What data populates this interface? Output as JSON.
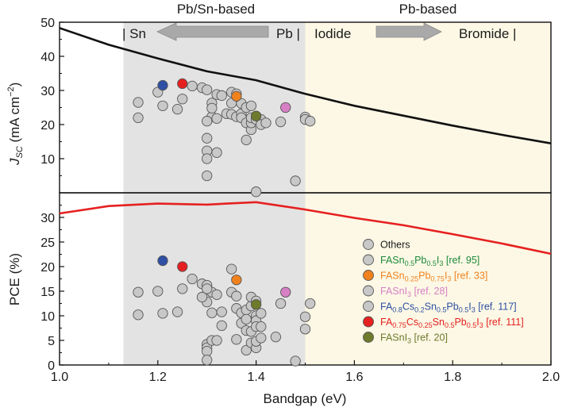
{
  "chart_data": [
    {
      "type": "line+scatter",
      "panel": "top",
      "ylabel": "J_SC (mA cm^-2)",
      "ylabel_main": "J",
      "ylabel_sub": "SC",
      "ylabel_rest": " (mA cm",
      "ylabel_sup": "−2",
      "ylabel_close": ")",
      "ylim": [
        0,
        50
      ],
      "yticks": [
        "10",
        "20",
        "30",
        "40",
        "50"
      ],
      "ytick_values": [
        10,
        20,
        30,
        40,
        50
      ],
      "limit_line": {
        "x": [
          1.0,
          1.1,
          1.2,
          1.3,
          1.4,
          1.5,
          1.6,
          1.7,
          1.8,
          1.9,
          2.0
        ],
        "y": [
          48.3,
          43.4,
          39.4,
          35.6,
          33.0,
          29.0,
          25.5,
          22.6,
          19.7,
          17.0,
          14.5
        ]
      },
      "others": [
        [
          1.16,
          26.5
        ],
        [
          1.16,
          22.0
        ],
        [
          1.2,
          29.5
        ],
        [
          1.21,
          25.5
        ],
        [
          1.24,
          24.5
        ],
        [
          1.25,
          27.5
        ],
        [
          1.27,
          31.3
        ],
        [
          1.29,
          30.8
        ],
        [
          1.3,
          30.2
        ],
        [
          1.31,
          26.3
        ],
        [
          1.31,
          22.3
        ],
        [
          1.31,
          24.8
        ],
        [
          1.32,
          28.8
        ],
        [
          1.32,
          21.8
        ],
        [
          1.33,
          28.5
        ],
        [
          1.34,
          23.2
        ],
        [
          1.35,
          29.5
        ],
        [
          1.35,
          26.3
        ],
        [
          1.35,
          23.0
        ],
        [
          1.36,
          22.3
        ],
        [
          1.36,
          29.0
        ],
        [
          1.37,
          26.2
        ],
        [
          1.37,
          23.2
        ],
        [
          1.37,
          22.0
        ],
        [
          1.38,
          20.5
        ],
        [
          1.38,
          25.0
        ],
        [
          1.38,
          15.5
        ],
        [
          1.39,
          18.5
        ],
        [
          1.39,
          25.5
        ],
        [
          1.39,
          20.5
        ],
        [
          1.39,
          22.0
        ],
        [
          1.4,
          22.5
        ],
        [
          1.4,
          21.5
        ],
        [
          1.41,
          21.5
        ],
        [
          1.41,
          20.0
        ],
        [
          1.42,
          20.5
        ],
        [
          1.45,
          20.8
        ],
        [
          1.5,
          22.2
        ],
        [
          1.5,
          21.5
        ],
        [
          1.51,
          21.0
        ],
        [
          1.3,
          16.0
        ],
        [
          1.3,
          12.3
        ],
        [
          1.3,
          10.0
        ],
        [
          1.32,
          11.8
        ],
        [
          1.3,
          5.0
        ],
        [
          1.48,
          3.5
        ],
        [
          1.4,
          0.3
        ],
        [
          1.3,
          21.0
        ]
      ],
      "highlights": [
        {
          "name": "FAPbI3-blue",
          "x": 1.21,
          "y": 31.5,
          "color": "#2e4fa3"
        },
        {
          "name": "FA0.75-red",
          "x": 1.25,
          "y": 32.0,
          "color": "#e62020"
        },
        {
          "name": "FASn0.25-orange",
          "x": 1.36,
          "y": 28.3,
          "color": "#f0821e"
        },
        {
          "name": "FASnI3-pink",
          "x": 1.46,
          "y": 25.0,
          "color": "#d77fc5"
        },
        {
          "name": "FASnI3-olive",
          "x": 1.4,
          "y": 22.5,
          "color": "#6e7a2c"
        }
      ]
    },
    {
      "type": "line+scatter",
      "panel": "bottom",
      "xlabel": "Bandgap (eV)",
      "ylabel": "PCE (%)",
      "xlim": [
        1.0,
        2.0
      ],
      "ylim": [
        0,
        35
      ],
      "xticks": [
        "1.0",
        "1.2",
        "1.4",
        "1.6",
        "1.8",
        "2.0"
      ],
      "xtick_values": [
        1.0,
        1.2,
        1.4,
        1.6,
        1.8,
        2.0
      ],
      "yticks": [
        "0",
        "5",
        "10",
        "15",
        "20",
        "25",
        "30"
      ],
      "ytick_values": [
        0,
        5,
        10,
        15,
        20,
        25,
        30
      ],
      "limit_line": {
        "x": [
          1.0,
          1.1,
          1.2,
          1.3,
          1.34,
          1.4,
          1.5,
          1.6,
          1.7,
          1.8,
          1.9,
          2.0
        ],
        "y": [
          30.8,
          32.3,
          32.8,
          32.6,
          32.8,
          33.1,
          31.6,
          29.9,
          28.4,
          26.6,
          24.7,
          22.6
        ]
      },
      "others": [
        [
          1.16,
          14.8
        ],
        [
          1.16,
          10.2
        ],
        [
          1.2,
          15.0
        ],
        [
          1.21,
          10.5
        ],
        [
          1.24,
          10.8
        ],
        [
          1.25,
          15.5
        ],
        [
          1.27,
          17.5
        ],
        [
          1.29,
          16.5
        ],
        [
          1.3,
          16.2
        ],
        [
          1.3,
          12.8
        ],
        [
          1.31,
          14.8
        ],
        [
          1.31,
          10.6
        ],
        [
          1.32,
          14.3
        ],
        [
          1.33,
          10.8
        ],
        [
          1.33,
          8.0
        ],
        [
          1.35,
          19.5
        ],
        [
          1.35,
          14.8
        ],
        [
          1.36,
          11.5
        ],
        [
          1.36,
          14.0
        ],
        [
          1.37,
          8.5
        ],
        [
          1.37,
          10.6
        ],
        [
          1.38,
          11.2
        ],
        [
          1.38,
          9.3
        ],
        [
          1.38,
          7.0
        ],
        [
          1.39,
          12.0
        ],
        [
          1.39,
          6.8
        ],
        [
          1.39,
          13.8
        ],
        [
          1.4,
          13.0
        ],
        [
          1.4,
          10.0
        ],
        [
          1.4,
          9.0
        ],
        [
          1.4,
          7.8
        ],
        [
          1.41,
          10.5
        ],
        [
          1.41,
          7.8
        ],
        [
          1.45,
          12.5
        ],
        [
          1.5,
          9.8
        ],
        [
          1.5,
          7.3
        ],
        [
          1.51,
          12.5
        ],
        [
          1.3,
          4.2
        ],
        [
          1.3,
          3.5
        ],
        [
          1.3,
          2.8
        ],
        [
          1.3,
          1.0
        ],
        [
          1.31,
          5.0
        ],
        [
          1.32,
          5.0
        ],
        [
          1.36,
          5.2
        ],
        [
          1.38,
          3.0
        ],
        [
          1.39,
          4.5
        ],
        [
          1.4,
          3.5
        ],
        [
          1.4,
          4.8
        ],
        [
          1.41,
          5.5
        ],
        [
          1.44,
          5.7
        ],
        [
          1.48,
          0.8
        ],
        [
          1.29,
          13.8
        ],
        [
          1.3,
          15.5
        ]
      ],
      "highlights": [
        {
          "name": "FAPbI3-blue",
          "x": 1.21,
          "y": 21.2,
          "color": "#2e4fa3"
        },
        {
          "name": "FA0.75-red",
          "x": 1.25,
          "y": 20.0,
          "color": "#e62020"
        },
        {
          "name": "FASn0.25-orange",
          "x": 1.36,
          "y": 17.3,
          "color": "#f0821e"
        },
        {
          "name": "FASnI3-pink",
          "x": 1.46,
          "y": 14.8,
          "color": "#d77fc5"
        },
        {
          "name": "FASnI3-olive",
          "x": 1.4,
          "y": 12.3,
          "color": "#6e7a2c"
        }
      ]
    }
  ],
  "regions": {
    "pbsn_range": [
      1.13,
      1.5
    ],
    "pbsn_color": "#e3e3e3",
    "pb_color": "#fcf8e5",
    "pbsn_title": "Pb/Sn-based",
    "pb_title": "Pb-based",
    "sn_label": "| Sn",
    "pb_label": "Pb |",
    "iodide_label": "Iodide",
    "bromide_label": "Bromide |"
  },
  "legend": {
    "position": "bottom-right",
    "entries": [
      {
        "text_parts": [
          [
            "Others",
            ""
          ]
        ],
        "color": "#1a1a1a",
        "marker": "#c8c8c8"
      },
      {
        "text_parts": [
          [
            "FASn",
            ""
          ],
          [
            "0.5",
            "sub"
          ],
          [
            "Pb",
            ""
          ],
          [
            "0.5",
            "sub"
          ],
          [
            "I",
            ""
          ],
          [
            "3",
            "sub"
          ],
          [
            " [ref. 95]",
            ""
          ]
        ],
        "color": "#1e8a3c",
        "marker": "#c8c8c8"
      },
      {
        "text_parts": [
          [
            "FASn",
            ""
          ],
          [
            "0.25",
            "sub"
          ],
          [
            "Pb",
            ""
          ],
          [
            "0.75",
            "sub"
          ],
          [
            "I",
            ""
          ],
          [
            "3",
            "sub"
          ],
          [
            " [ref. 33]",
            ""
          ]
        ],
        "color": "#f0821e",
        "marker": "#f0821e"
      },
      {
        "text_parts": [
          [
            "FASnI",
            ""
          ],
          [
            "3",
            "sub"
          ],
          [
            " [ref. 28]",
            ""
          ]
        ],
        "color": "#d77fc5",
        "marker": "#c8c8c8"
      },
      {
        "text_parts": [
          [
            "FA",
            ""
          ],
          [
            "0.8",
            "sub"
          ],
          [
            "Cs",
            ""
          ],
          [
            "0.2",
            "sub"
          ],
          [
            "Sn",
            ""
          ],
          [
            "0.5",
            "sub"
          ],
          [
            "Pb",
            ""
          ],
          [
            "0.5",
            "sub"
          ],
          [
            "I",
            ""
          ],
          [
            "3",
            "sub"
          ],
          [
            " [ref. 117]",
            ""
          ]
        ],
        "color": "#2e4fa3",
        "marker": "#c8c8c8"
      },
      {
        "text_parts": [
          [
            "FA",
            ""
          ],
          [
            "0.75",
            "sub"
          ],
          [
            "Cs",
            ""
          ],
          [
            "0.25",
            "sub"
          ],
          [
            "Sn",
            ""
          ],
          [
            "0.5",
            "sub"
          ],
          [
            "Pb",
            ""
          ],
          [
            "0.5",
            "sub"
          ],
          [
            "I",
            ""
          ],
          [
            "3",
            "sub"
          ],
          [
            " [ref. 111]",
            ""
          ]
        ],
        "color": "#e62020",
        "marker": "#e62020"
      },
      {
        "text_parts": [
          [
            "FASnI",
            ""
          ],
          [
            "3",
            "sub"
          ],
          [
            " [ref. 20]",
            ""
          ]
        ],
        "color": "#6e7a2c",
        "marker": "#6e7a2c"
      }
    ]
  },
  "colors": {
    "jsc_line": "#111111",
    "pce_line": "#e62020",
    "other_fill": "#c8c8c8",
    "marker_stroke": "#555555",
    "arrow_fill": "#a9a9a9"
  }
}
